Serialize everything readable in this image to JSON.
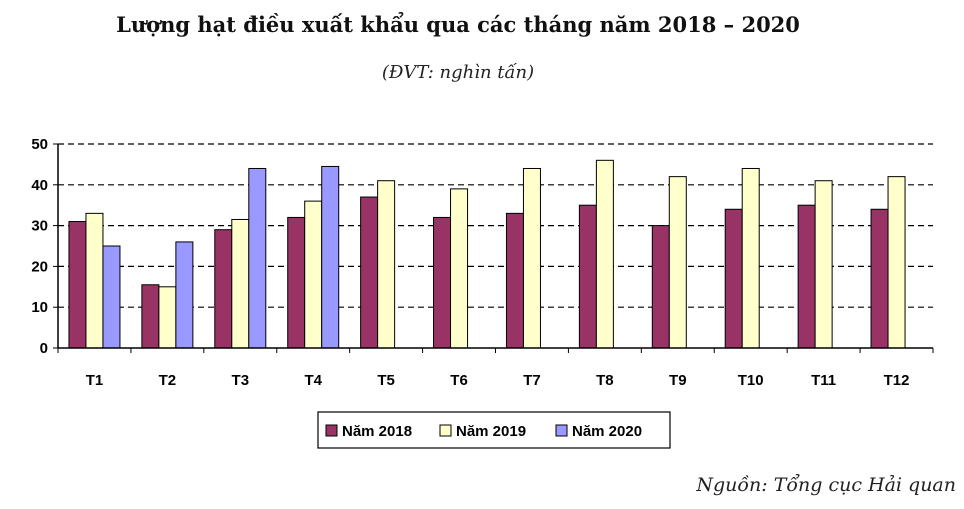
{
  "header": {
    "title": "Lượng hạt điều xuất khẩu qua các tháng năm 2018 – 2020",
    "unit_note": "(ĐVT: nghìn tấn)"
  },
  "footer": {
    "source": "Nguồn: Tổng cục Hải quan"
  },
  "chart_data": {
    "type": "bar",
    "title": "Lượng hạt điều xuất khẩu qua các tháng năm 2018 – 2020",
    "subtitle": "(ĐVT: nghìn tấn)",
    "xlabel": "",
    "ylabel": "",
    "ylim": [
      0,
      50
    ],
    "yticks": [
      0,
      10,
      20,
      30,
      40,
      50
    ],
    "grid": true,
    "legend_position": "bottom",
    "categories": [
      "T1",
      "T2",
      "T3",
      "T4",
      "T5",
      "T6",
      "T7",
      "T8",
      "T9",
      "T10",
      "T11",
      "T12"
    ],
    "series": [
      {
        "name": "Năm 2018",
        "color": "#993366",
        "values": [
          31,
          15.5,
          29,
          32,
          37,
          32,
          33,
          35,
          30,
          34,
          35,
          34
        ]
      },
      {
        "name": "Năm 2019",
        "color": "#FFFFCC",
        "values": [
          33,
          15,
          31.5,
          36,
          41,
          39,
          44,
          46,
          42,
          44,
          41,
          42
        ]
      },
      {
        "name": "Năm 2020",
        "color": "#9999FF",
        "values": [
          25,
          26,
          44,
          44.5,
          null,
          null,
          null,
          null,
          null,
          null,
          null,
          null
        ]
      }
    ]
  }
}
